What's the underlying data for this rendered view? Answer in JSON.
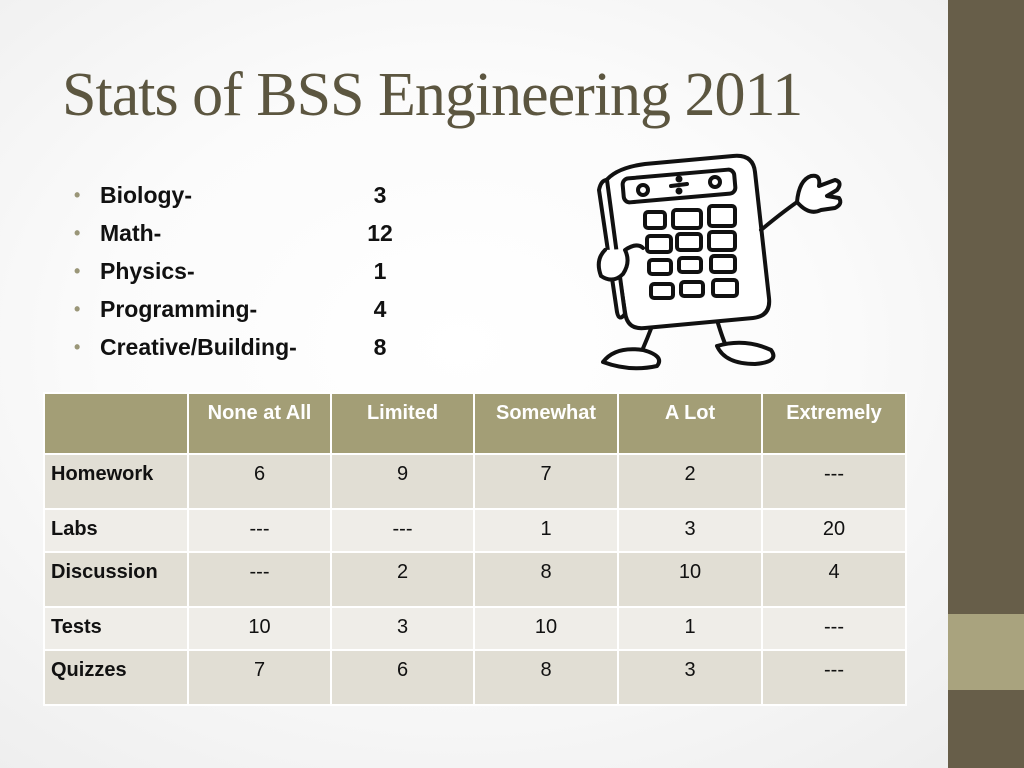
{
  "title": "Stats of BSS Engineering 2011",
  "stats": [
    {
      "label": "Biology-",
      "value": "3"
    },
    {
      "label": "Math-",
      "value": "12"
    },
    {
      "label": "Physics-",
      "value": "1"
    },
    {
      "label": "Programming-",
      "value": "4"
    },
    {
      "label": "Creative/Building-",
      "value": "8"
    }
  ],
  "table": {
    "headers": [
      "",
      "None at All",
      "Limited",
      "Somewhat",
      "A Lot",
      "Extremely"
    ],
    "rows": [
      {
        "name": "Homework",
        "cells": [
          "6",
          "9",
          "7",
          "2",
          "---"
        ]
      },
      {
        "name": "Labs",
        "cells": [
          "---",
          "---",
          "1",
          "3",
          "20"
        ]
      },
      {
        "name": "Discussion",
        "cells": [
          "---",
          "2",
          "8",
          "10",
          "4"
        ]
      },
      {
        "name": "Tests",
        "cells": [
          "10",
          "3",
          "10",
          "1",
          "---"
        ]
      },
      {
        "name": "Quizzes",
        "cells": [
          "7",
          "6",
          "8",
          "3",
          "---"
        ]
      }
    ]
  },
  "colors": {
    "sidebar": "#675e49",
    "sidebar_accent": "#a9a37e",
    "title": "#5c5640",
    "table_header": "#a39e76"
  },
  "illustration": "calculator-cartoon-icon"
}
